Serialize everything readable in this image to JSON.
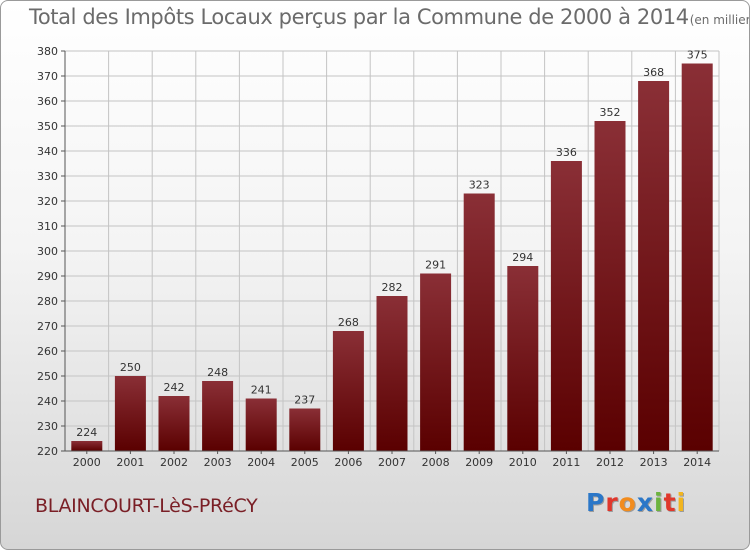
{
  "header": {
    "title": "Total des Impôts Locaux perçus par la Commune de 2000 à 2014",
    "unit": "(en milliers d'€)"
  },
  "footer": {
    "commune": "BLAINCOURT-LèS-PRéCY",
    "logo": [
      "P",
      "r",
      "o",
      "x",
      "i",
      "t",
      "i"
    ],
    "logo_colors": [
      "#2b77c8",
      "#e0372c",
      "#f28c1e",
      "#2b77c8",
      "#6db33f",
      "#e0372c",
      "#f2b51e"
    ]
  },
  "chart_data": {
    "type": "bar",
    "title": "Total des Impôts Locaux perçus par la Commune de 2000 à 2014",
    "unit": "(en milliers d'€)",
    "categories": [
      "2000",
      "2001",
      "2002",
      "2003",
      "2004",
      "2005",
      "2006",
      "2007",
      "2008",
      "2009",
      "2010",
      "2011",
      "2012",
      "2013",
      "2014"
    ],
    "values": [
      224,
      250,
      242,
      248,
      241,
      237,
      268,
      282,
      291,
      323,
      294,
      336,
      352,
      368,
      375
    ],
    "ylim": [
      220,
      380
    ],
    "yticks": [
      220,
      230,
      240,
      250,
      260,
      270,
      280,
      290,
      300,
      310,
      320,
      330,
      340,
      350,
      360,
      370,
      380
    ],
    "grid": true,
    "bar_color_top": "#8a2f36",
    "bar_color_bottom": "#5a0000"
  }
}
